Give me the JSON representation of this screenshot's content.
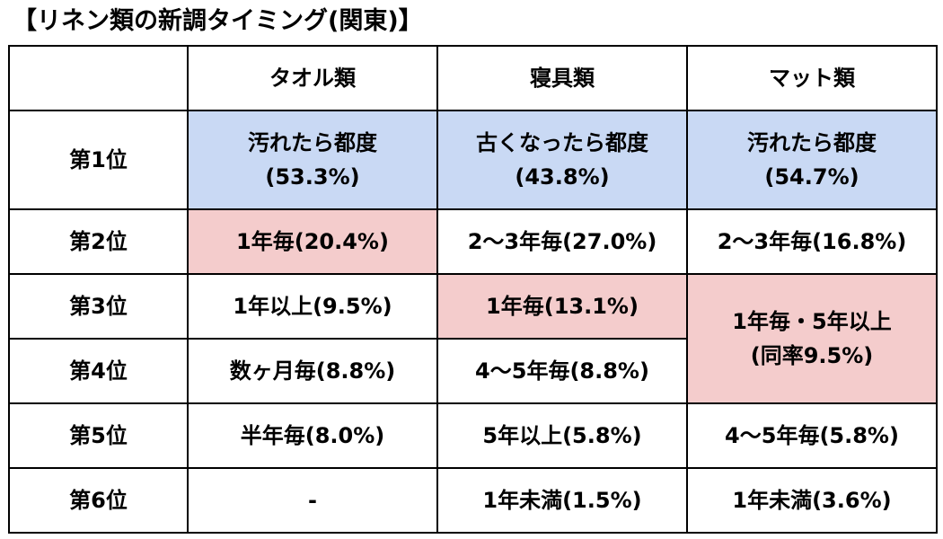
{
  "title": "【リネン類の新調タイミング(関東)】",
  "colors": {
    "highlight_first": "#c9d9f4",
    "highlight_second": "#f4cccc"
  },
  "headers": [
    "",
    "タオル類",
    "寝具類",
    "マット類"
  ],
  "ranks": [
    "第1位",
    "第2位",
    "第3位",
    "第4位",
    "第5位",
    "第6位"
  ],
  "towels": {
    "r1_line1": "汚れたら都度",
    "r1_line2": "(53.3%)",
    "r2": "1年毎(20.4%)",
    "r3": "1年以上(9.5%)",
    "r4": "数ヶ月毎(8.8%)",
    "r5": "半年毎(8.0%)",
    "r6": "-"
  },
  "bedding": {
    "r1_line1": "古くなったら都度",
    "r1_line2": "(43.8%)",
    "r2": "2〜3年毎(27.0%)",
    "r3": "1年毎(13.1%)",
    "r4": "4〜5年毎(8.8%)",
    "r5": "5年以上(5.8%)",
    "r6": "1年未満(1.5%)"
  },
  "mats": {
    "r1_line1": "汚れたら都度",
    "r1_line2": "(54.7%)",
    "r2": "2〜3年毎(16.8%)",
    "r34_line1": "1年毎・5年以上",
    "r34_line2": "(同率9.5%)",
    "r5": "4〜5年毎(5.8%)",
    "r6": "1年未満(3.6%)"
  }
}
